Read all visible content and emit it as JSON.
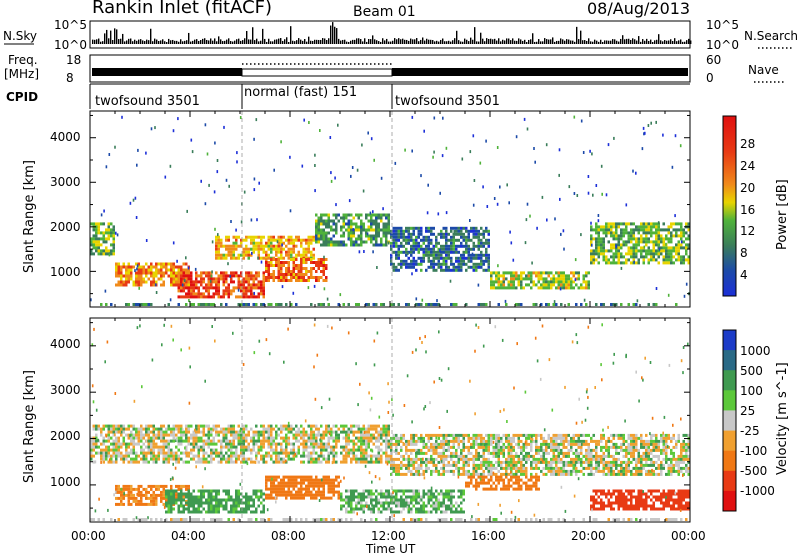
{
  "header": {
    "title": "Rankin Inlet (fitACF)",
    "beam": "Beam 01",
    "date": "08/Aug/2013"
  },
  "noise_panel": {
    "left_label": "N.Sky",
    "right_label": "N.Search",
    "ticks_left": [
      "10^5",
      "10^0"
    ],
    "ticks_right": [
      "10^5",
      "10^0"
    ]
  },
  "freq_panel": {
    "left_label_1": "Freq.",
    "left_label_2": "[MHz]",
    "right_label": "Nave",
    "ticks_left": [
      "18",
      "8"
    ],
    "ticks_right": [
      "60",
      "0"
    ]
  },
  "cpid_panel": {
    "label": "CPID",
    "segments": [
      {
        "start_hour": 0,
        "end_hour": 6,
        "text": "twofsound 3501"
      },
      {
        "start_hour": 6,
        "end_hour": 12,
        "text": "normal (fast) 151"
      },
      {
        "start_hour": 12,
        "end_hour": 24,
        "text": "twofsound 3501"
      }
    ]
  },
  "x_axis": {
    "label": "Time UT",
    "ticks": [
      "00:00",
      "04:00",
      "08:00",
      "12:00",
      "16:00",
      "20:00",
      "00:00"
    ]
  },
  "power_panel": {
    "ylabel": "Slant Range [km]",
    "yticks": [
      "1000",
      "2000",
      "3000",
      "4000"
    ],
    "colorbar_label": "Power [dB]",
    "colorbar_ticks": [
      "4",
      "8",
      "12",
      "16",
      "20",
      "24",
      "28"
    ],
    "colors": [
      "#1c2fd8",
      "#1c4aa8",
      "#3a7d5a",
      "#4fb23a",
      "#e8d400",
      "#f08a1a",
      "#e83a14",
      "#e01010"
    ]
  },
  "velocity_panel": {
    "ylabel": "Slant Range [km]",
    "yticks": [
      "1000",
      "2000",
      "3000",
      "4000"
    ],
    "colorbar_label": "Velocity [m s^-1]",
    "colorbar_ticks": [
      "1000",
      "500",
      "100",
      "25",
      "-25",
      "-100",
      "-500",
      "-1000"
    ],
    "colors": [
      "#1c3cc8",
      "#2a6a86",
      "#3f9a50",
      "#5cc83a",
      "#c8c8c8",
      "#f0a030",
      "#f07814",
      "#e83a14",
      "#e01010"
    ]
  },
  "chart_data": [
    {
      "type": "heatmap",
      "title": "Power",
      "xlabel": "Time UT",
      "ylabel": "Slant Range [km]",
      "xlim": [
        0,
        24
      ],
      "ylim": [
        200,
        4600
      ],
      "zlabel": "Power [dB]",
      "zlim": [
        0,
        32
      ],
      "bands": [
        {
          "t_start": 0,
          "t_end": 1,
          "range_low": 1400,
          "range_high": 2100,
          "power": 14
        },
        {
          "t_start": 1,
          "t_end": 4,
          "range_low": 700,
          "range_high": 1200,
          "power": 22
        },
        {
          "t_start": 3.5,
          "t_end": 7,
          "range_low": 400,
          "range_high": 1000,
          "power": 26
        },
        {
          "t_start": 5,
          "t_end": 9,
          "range_low": 1300,
          "range_high": 1800,
          "power": 20
        },
        {
          "t_start": 7,
          "t_end": 9.5,
          "range_low": 800,
          "range_high": 1300,
          "power": 24
        },
        {
          "t_start": 9,
          "t_end": 12,
          "range_low": 1600,
          "range_high": 2300,
          "power": 12
        },
        {
          "t_start": 12,
          "t_end": 16,
          "range_low": 1000,
          "range_high": 2000,
          "power": 8
        },
        {
          "t_start": 16,
          "t_end": 20,
          "range_low": 600,
          "range_high": 1000,
          "power": 16
        },
        {
          "t_start": 20,
          "t_end": 24,
          "range_low": 1200,
          "range_high": 2100,
          "power": 14
        }
      ]
    },
    {
      "type": "heatmap",
      "title": "Velocity",
      "xlabel": "Time UT",
      "ylabel": "Slant Range [km]",
      "xlim": [
        0,
        24
      ],
      "ylim": [
        200,
        4600
      ],
      "zlabel": "Velocity [m s^-1]",
      "zlim": [
        -1000,
        1000
      ],
      "bands": [
        {
          "t_start": 0,
          "t_end": 12,
          "range_low": 1500,
          "range_high": 2300,
          "velocity": 0
        },
        {
          "t_start": 12,
          "t_end": 24,
          "range_low": 1200,
          "range_high": 2100,
          "velocity": 0
        },
        {
          "t_start": 1,
          "t_end": 4,
          "range_low": 600,
          "range_high": 1000,
          "velocity": -150
        },
        {
          "t_start": 3,
          "t_end": 7,
          "range_low": 400,
          "range_high": 900,
          "velocity": 120
        },
        {
          "t_start": 7,
          "t_end": 10,
          "range_low": 700,
          "range_high": 1200,
          "velocity": -200
        },
        {
          "t_start": 10,
          "t_end": 15,
          "range_low": 400,
          "range_high": 900,
          "velocity": 80
        },
        {
          "t_start": 15,
          "t_end": 18,
          "range_low": 900,
          "range_high": 1200,
          "velocity": -400
        },
        {
          "t_start": 20,
          "t_end": 24,
          "range_low": 500,
          "range_high": 900,
          "velocity": -600
        }
      ]
    }
  ]
}
